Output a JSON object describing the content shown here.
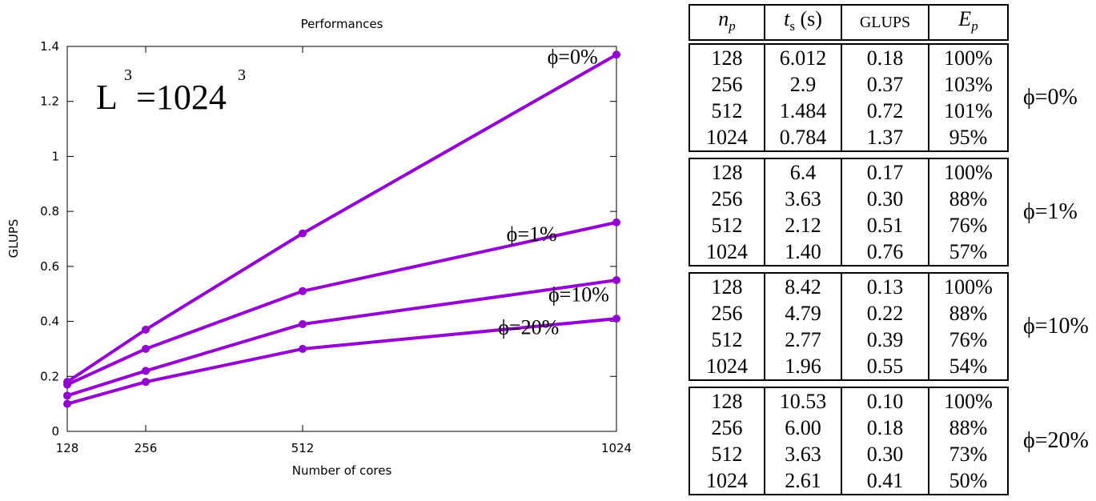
{
  "chart_data": {
    "type": "line",
    "title": "Performances",
    "xlabel": "Number of cores",
    "ylabel": "GLUPS",
    "x": [
      128,
      256,
      512,
      1024
    ],
    "xticks": [
      "128",
      "256",
      "512",
      "1024"
    ],
    "yticks": [
      "0",
      "0.2",
      "0.4",
      "0.6",
      "0.8",
      "1",
      "1.2",
      "1.4"
    ],
    "ylim": [
      0,
      1.4
    ],
    "grid": false,
    "color": "#9400d3",
    "annotation": "L^3 = 1024^3",
    "series": [
      {
        "name": "ϕ=0%",
        "values": [
          0.18,
          0.37,
          0.72,
          1.37
        ]
      },
      {
        "name": "ϕ=1%",
        "values": [
          0.17,
          0.3,
          0.51,
          0.76
        ]
      },
      {
        "name": "ϕ=10%",
        "values": [
          0.13,
          0.22,
          0.39,
          0.55
        ]
      },
      {
        "name": "ϕ=20%",
        "values": [
          0.1,
          0.18,
          0.3,
          0.41
        ]
      }
    ]
  },
  "table": {
    "headers": {
      "np": "n",
      "np_sub": "p",
      "ts": "t",
      "ts_sub": "s",
      "ts_unit": "(s)",
      "glups": "GLUPS",
      "ep": "E",
      "ep_sub": "p"
    },
    "blocks": [
      {
        "label": "ϕ=0%",
        "rows": [
          [
            "128",
            "6.012",
            "0.18",
            "100%"
          ],
          [
            "256",
            "2.9",
            "0.37",
            "103%"
          ],
          [
            "512",
            "1.484",
            "0.72",
            "101%"
          ],
          [
            "1024",
            "0.784",
            "1.37",
            "95%"
          ]
        ]
      },
      {
        "label": "ϕ=1%",
        "rows": [
          [
            "128",
            "6.4",
            "0.17",
            "100%"
          ],
          [
            "256",
            "3.63",
            "0.30",
            "88%"
          ],
          [
            "512",
            "2.12",
            "0.51",
            "76%"
          ],
          [
            "1024",
            "1.40",
            "0.76",
            "57%"
          ]
        ]
      },
      {
        "label": "ϕ=10%",
        "rows": [
          [
            "128",
            "8.42",
            "0.13",
            "100%"
          ],
          [
            "256",
            "4.79",
            "0.22",
            "88%"
          ],
          [
            "512",
            "2.77",
            "0.39",
            "76%"
          ],
          [
            "1024",
            "1.96",
            "0.55",
            "54%"
          ]
        ]
      },
      {
        "label": "ϕ=20%",
        "rows": [
          [
            "128",
            "10.53",
            "0.10",
            "100%"
          ],
          [
            "256",
            "6.00",
            "0.18",
            "88%"
          ],
          [
            "512",
            "3.63",
            "0.30",
            "73%"
          ],
          [
            "1024",
            "2.61",
            "0.41",
            "50%"
          ]
        ]
      }
    ]
  }
}
